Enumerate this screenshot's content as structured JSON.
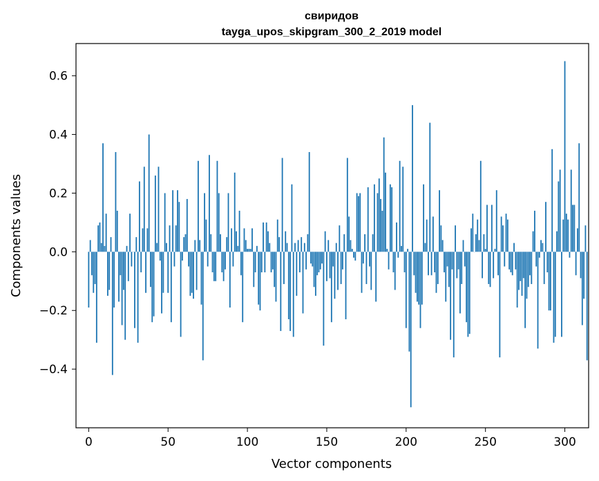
{
  "chart_data": {
    "type": "bar",
    "title": "свиридов",
    "subtitle": "tayga_upos_skipgram_300_2_2019 model",
    "xlabel": "Vector components",
    "ylabel": "Components values",
    "xlim": [
      -8,
      315
    ],
    "ylim": [
      -0.6,
      0.71
    ],
    "xticks": [
      0,
      50,
      100,
      150,
      200,
      250,
      300
    ],
    "xtick_labels": [
      "0",
      "50",
      "100",
      "150",
      "200",
      "250",
      "300"
    ],
    "yticks": [
      -0.4,
      -0.2,
      0.0,
      0.2,
      0.4,
      0.6
    ],
    "ytick_labels": [
      "−0.4",
      "−0.2",
      "0.0",
      "0.2",
      "0.4",
      "0.6"
    ],
    "grid": false,
    "bar_color": "#1f77b4",
    "values": [
      -0.19,
      0.04,
      -0.08,
      -0.14,
      -0.11,
      -0.31,
      0.09,
      0.1,
      0.03,
      0.37,
      0.02,
      0.13,
      -0.15,
      -0.13,
      0.05,
      -0.42,
      -0.19,
      0.34,
      0.14,
      -0.17,
      -0.08,
      -0.25,
      -0.13,
      -0.3,
      0.02,
      -0.1,
      0.13,
      -0.05,
      0.0,
      -0.26,
      0.05,
      -0.31,
      0.24,
      -0.07,
      0.08,
      0.29,
      -0.14,
      0.08,
      0.4,
      -0.12,
      -0.24,
      -0.22,
      0.26,
      0.03,
      0.29,
      -0.03,
      -0.21,
      -0.14,
      0.2,
      0.03,
      -0.14,
      0.09,
      -0.24,
      0.21,
      -0.05,
      0.09,
      0.21,
      0.17,
      -0.29,
      -0.03,
      0.05,
      0.06,
      0.18,
      -0.05,
      -0.15,
      -0.14,
      -0.16,
      0.04,
      -0.13,
      0.31,
      0.04,
      -0.18,
      -0.37,
      0.2,
      0.11,
      -0.05,
      0.33,
      0.06,
      -0.07,
      -0.1,
      -0.1,
      0.31,
      0.2,
      0.06,
      -0.07,
      -0.1,
      -0.06,
      0.05,
      0.2,
      -0.19,
      0.08,
      -0.05,
      0.27,
      0.07,
      0.02,
      0.14,
      -0.08,
      -0.24,
      0.08,
      0.04,
      0.01,
      0.01,
      0.01,
      0.08,
      -0.12,
      -0.07,
      0.02,
      -0.18,
      -0.2,
      -0.07,
      0.1,
      -0.07,
      0.1,
      0.07,
      0.03,
      -0.07,
      -0.06,
      -0.12,
      -0.17,
      0.11,
      0.05,
      -0.27,
      0.32,
      -0.11,
      0.07,
      0.03,
      -0.23,
      -0.27,
      0.23,
      -0.29,
      0.03,
      -0.15,
      0.04,
      -0.07,
      0.05,
      -0.21,
      0.03,
      -0.06,
      0.06,
      0.34,
      -0.04,
      -0.05,
      -0.12,
      -0.15,
      -0.08,
      -0.07,
      -0.06,
      -0.04,
      -0.32,
      0.07,
      -0.1,
      0.04,
      -0.09,
      -0.24,
      -0.05,
      -0.16,
      0.03,
      -0.13,
      0.09,
      -0.11,
      -0.06,
      0.06,
      -0.23,
      0.32,
      0.12,
      0.04,
      0.01,
      -0.02,
      -0.03,
      0.2,
      0.19,
      0.2,
      -0.14,
      -0.04,
      0.06,
      -0.11,
      0.22,
      -0.05,
      -0.13,
      0.06,
      0.23,
      -0.17,
      0.2,
      0.25,
      0.18,
      0.14,
      0.39,
      0.27,
      0.01,
      -0.06,
      0.23,
      0.22,
      -0.07,
      -0.13,
      0.1,
      -0.02,
      0.31,
      0.02,
      0.29,
      -0.07,
      -0.26,
      0.01,
      -0.34,
      -0.53,
      0.5,
      -0.08,
      -0.14,
      -0.17,
      -0.18,
      -0.26,
      -0.18,
      0.23,
      0.03,
      0.11,
      -0.08,
      0.44,
      -0.08,
      0.12,
      -0.07,
      -0.14,
      -0.11,
      0.21,
      0.09,
      0.04,
      -0.07,
      -0.17,
      -0.05,
      -0.12,
      -0.3,
      -0.06,
      -0.36,
      0.09,
      -0.09,
      -0.06,
      -0.21,
      -0.11,
      0.04,
      -0.05,
      -0.24,
      -0.29,
      -0.28,
      0.08,
      0.13,
      0.0,
      0.06,
      0.11,
      0.04,
      0.31,
      -0.09,
      0.06,
      0.01,
      0.16,
      -0.11,
      -0.12,
      0.16,
      -0.09,
      0.01,
      0.21,
      -0.08,
      -0.36,
      0.12,
      0.09,
      -0.05,
      0.13,
      0.11,
      -0.06,
      -0.07,
      -0.08,
      0.03,
      -0.06,
      -0.19,
      -0.13,
      -0.1,
      -0.15,
      -0.09,
      -0.26,
      -0.16,
      -0.12,
      -0.08,
      -0.11,
      0.07,
      0.14,
      -0.05,
      -0.33,
      -0.02,
      0.04,
      0.03,
      -0.11,
      0.17,
      -0.07,
      -0.2,
      -0.2,
      0.35,
      -0.31,
      -0.29,
      0.07,
      0.24,
      0.28,
      -0.29,
      0.11,
      0.65,
      0.13,
      0.11,
      -0.02,
      0.28,
      0.16,
      0.16,
      -0.08,
      0.08,
      0.37,
      -0.09,
      -0.25,
      -0.16,
      0.09,
      -0.37
    ]
  }
}
